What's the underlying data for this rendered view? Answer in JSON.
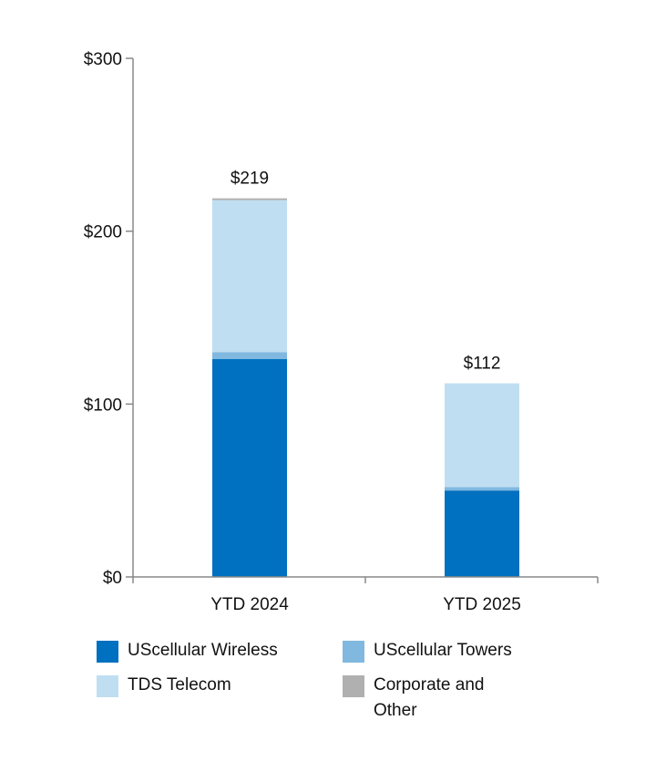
{
  "chart_data": {
    "type": "bar",
    "stacked": true,
    "title": "",
    "xlabel": "",
    "ylabel": "",
    "ylim": [
      0,
      300
    ],
    "yticks": [
      0,
      100,
      200,
      300
    ],
    "ytick_labels": [
      "$0",
      "$100",
      "$200",
      "$300"
    ],
    "categories": [
      "YTD 2024",
      "YTD 2025"
    ],
    "totals": [
      219,
      112
    ],
    "total_labels": [
      "$219",
      "$112"
    ],
    "series": [
      {
        "name": "UScellular Wireless",
        "color": "#0070C0",
        "values": [
          126,
          50
        ]
      },
      {
        "name": "UScellular Towers",
        "color": "#80B8E0",
        "values": [
          4,
          2
        ]
      },
      {
        "name": "TDS Telecom",
        "color": "#C0DEF1",
        "values": [
          88,
          60
        ]
      },
      {
        "name": "Corporate and Other",
        "color": "#B0B0B0",
        "values": [
          1,
          0
        ]
      }
    ],
    "legend_position": "bottom",
    "grid": false
  }
}
